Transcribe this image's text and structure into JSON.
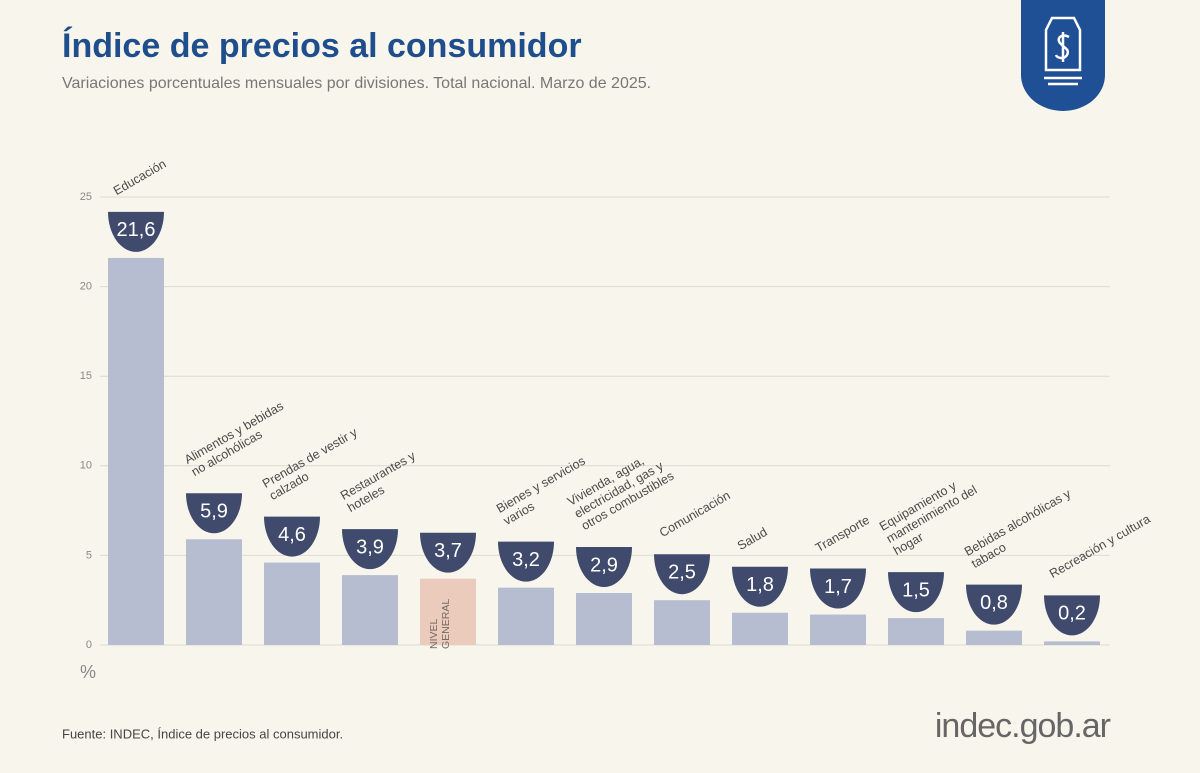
{
  "chart_data": {
    "type": "bar",
    "title": "Índice de precios al consumidor",
    "subtitle": "Variaciones porcentuales mensuales por divisiones. Total nacional. Marzo de 2025.",
    "categories": [
      "Educación",
      "Alimentos y bebidas no alcohólicas",
      "Prendas de vestir y calzado",
      "Restaurantes y hoteles",
      "NIVEL GENERAL",
      "Bienes y servicios varios",
      "Vivienda, agua, electricidad, gas y otros combustibles",
      "Comunicación",
      "Salud",
      "Transporte",
      "Equipamiento y mantenimiento del hogar",
      "Bebidas alcohólicas y tabaco",
      "Recreación y cultura"
    ],
    "values": [
      21.6,
      5.9,
      4.6,
      3.9,
      3.7,
      3.2,
      2.9,
      2.5,
      1.8,
      1.7,
      1.5,
      0.8,
      0.2
    ],
    "value_labels": [
      "21,6",
      "5,9",
      "4,6",
      "3,9",
      "3,7",
      "3,2",
      "2,9",
      "2,5",
      "1,8",
      "1,7",
      "1,5",
      "0,8",
      "0,2"
    ],
    "color": "#b6bdd1",
    "bar_colors": [
      "#b6bdd1",
      "#b6bdd1",
      "#b6bdd1",
      "#b6bdd1",
      "#ebcbbc",
      "#b6bdd1",
      "#b6bdd1",
      "#b6bdd1",
      "#b6bdd1",
      "#b6bdd1",
      "#b6bdd1",
      "#b6bdd1",
      "#b6bdd1"
    ],
    "badge_color": "#3f4a6c",
    "ylim": [
      0,
      25
    ],
    "yticks": [
      0,
      5,
      10,
      15,
      20,
      25
    ],
    "y_unit": "%",
    "grid": true
  },
  "source": "Fuente: INDEC, Índice de precios al consumidor.",
  "brand": "indec.gob.ar"
}
